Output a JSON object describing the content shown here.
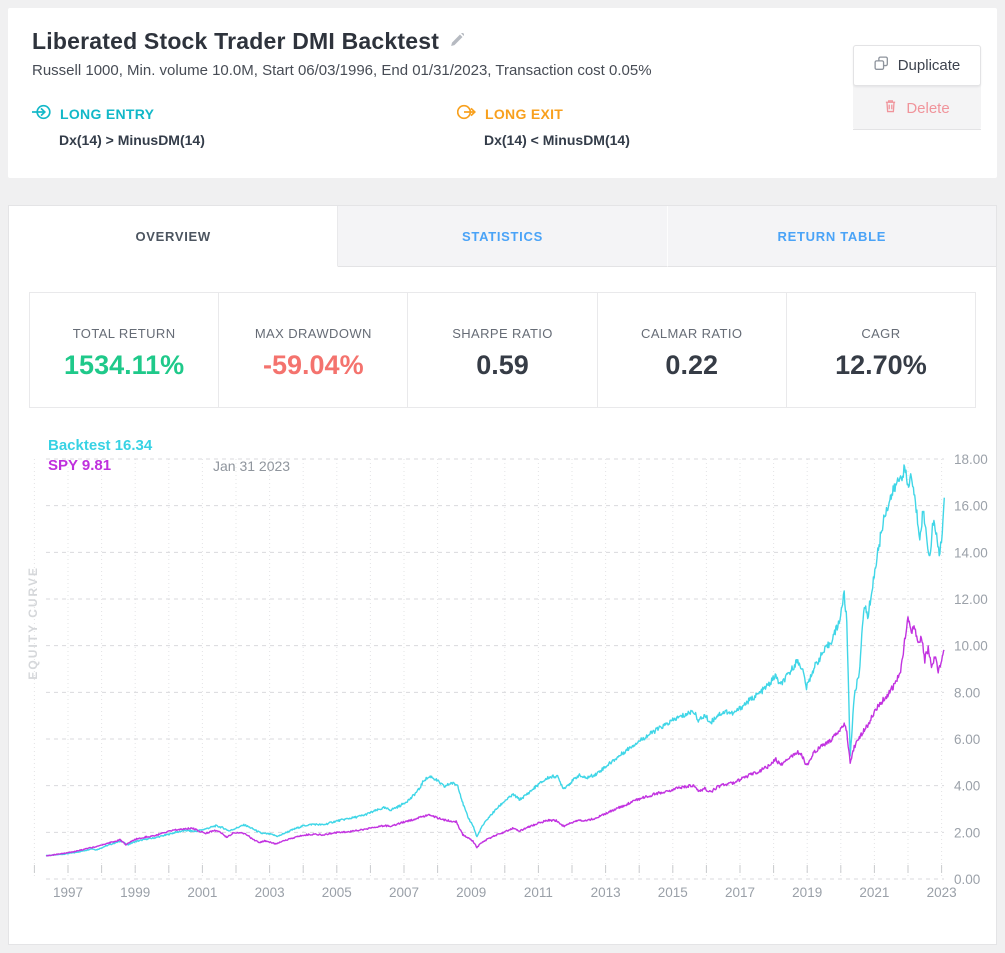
{
  "header": {
    "title": "Liberated Stock Trader DMI Backtest",
    "subtitle": "Russell 1000, Min. volume 10.0M, Start 06/03/1996, End 01/31/2023, Transaction cost 0.05%",
    "duplicate_label": "Duplicate",
    "delete_label": "Delete",
    "long_entry": {
      "label": "LONG ENTRY",
      "condition": "Dx(14) > MinusDM(14)",
      "color": "#12b8c8"
    },
    "long_exit": {
      "label": "LONG EXIT",
      "condition": "Dx(14) < MinusDM(14)",
      "color": "#f8a01d"
    }
  },
  "tabs": [
    {
      "label": "OVERVIEW",
      "active": true
    },
    {
      "label": "STATISTICS",
      "active": false
    },
    {
      "label": "RETURN TABLE",
      "active": false
    }
  ],
  "stats": [
    {
      "label": "TOTAL RETURN",
      "value": "1534.11%",
      "color": "#1fc98a"
    },
    {
      "label": "MAX DRAWDOWN",
      "value": "-59.04%",
      "color": "#f4736e"
    },
    {
      "label": "SHARPE RATIO",
      "value": "0.59",
      "color": "#363c46"
    },
    {
      "label": "CALMAR RATIO",
      "value": "0.22",
      "color": "#363c46"
    },
    {
      "label": "CAGR",
      "value": "12.70%",
      "color": "#363c46"
    }
  ],
  "chart_data": {
    "type": "line",
    "title": "EQUITY CURVE",
    "date_label": "Jan 31 2023",
    "grid": "dashed",
    "legend_position": "top-left",
    "xlim": [
      1996.35,
      2023.25
    ],
    "ylim": [
      0,
      18
    ],
    "x_ticks": [
      1997,
      1999,
      2001,
      2003,
      2005,
      2007,
      2009,
      2011,
      2013,
      2015,
      2017,
      2019,
      2021,
      2023
    ],
    "y_ticks": [
      "18.00",
      "16.00",
      "14.00",
      "12.00",
      "10.00",
      "8.00",
      "6.00",
      "4.00",
      "2.00",
      "0.00"
    ],
    "legend": [
      {
        "name": "Backtest",
        "value": 16.34,
        "label": "Backtest 16.34",
        "color": "#38d2e4"
      },
      {
        "name": "SPY",
        "value": 9.81,
        "label": "SPY 9.81",
        "color": "#bf30dd"
      }
    ],
    "series": [
      {
        "name": "Backtest",
        "color": "#40d6e7",
        "points": [
          [
            1996.35,
            1.0
          ],
          [
            1996.6,
            1.03
          ],
          [
            1996.9,
            1.07
          ],
          [
            1997.2,
            1.13
          ],
          [
            1997.5,
            1.22
          ],
          [
            1997.7,
            1.3
          ],
          [
            1997.85,
            1.25
          ],
          [
            1998.1,
            1.4
          ],
          [
            1998.4,
            1.55
          ],
          [
            1998.6,
            1.63
          ],
          [
            1998.75,
            1.46
          ],
          [
            1999.0,
            1.6
          ],
          [
            1999.3,
            1.7
          ],
          [
            1999.6,
            1.77
          ],
          [
            1999.9,
            1.88
          ],
          [
            2000.2,
            2.0
          ],
          [
            2000.5,
            2.08
          ],
          [
            2000.8,
            2.04
          ],
          [
            2001.1,
            2.15
          ],
          [
            2001.4,
            2.28
          ],
          [
            2001.6,
            2.2
          ],
          [
            2001.8,
            2.06
          ],
          [
            2002.0,
            2.18
          ],
          [
            2002.25,
            2.32
          ],
          [
            2002.5,
            2.15
          ],
          [
            2002.75,
            1.96
          ],
          [
            2003.0,
            1.93
          ],
          [
            2003.25,
            1.83
          ],
          [
            2003.5,
            2.0
          ],
          [
            2003.75,
            2.15
          ],
          [
            2004.0,
            2.28
          ],
          [
            2004.3,
            2.35
          ],
          [
            2004.6,
            2.32
          ],
          [
            2004.9,
            2.45
          ],
          [
            2005.2,
            2.55
          ],
          [
            2005.5,
            2.63
          ],
          [
            2005.8,
            2.73
          ],
          [
            2006.1,
            2.9
          ],
          [
            2006.4,
            3.05
          ],
          [
            2006.6,
            2.96
          ],
          [
            2006.9,
            3.15
          ],
          [
            2007.2,
            3.45
          ],
          [
            2007.45,
            3.85
          ],
          [
            2007.6,
            4.25
          ],
          [
            2007.8,
            4.4
          ],
          [
            2008.0,
            4.2
          ],
          [
            2008.2,
            3.95
          ],
          [
            2008.4,
            4.12
          ],
          [
            2008.6,
            4.02
          ],
          [
            2008.75,
            3.25
          ],
          [
            2008.9,
            2.65
          ],
          [
            2009.05,
            2.3
          ],
          [
            2009.17,
            1.8
          ],
          [
            2009.3,
            2.2
          ],
          [
            2009.5,
            2.6
          ],
          [
            2009.75,
            3.0
          ],
          [
            2010.0,
            3.35
          ],
          [
            2010.25,
            3.62
          ],
          [
            2010.45,
            3.4
          ],
          [
            2010.7,
            3.68
          ],
          [
            2011.0,
            4.05
          ],
          [
            2011.3,
            4.35
          ],
          [
            2011.55,
            4.42
          ],
          [
            2011.75,
            3.88
          ],
          [
            2011.95,
            4.12
          ],
          [
            2012.2,
            4.45
          ],
          [
            2012.4,
            4.32
          ],
          [
            2012.7,
            4.48
          ],
          [
            2013.0,
            4.82
          ],
          [
            2013.3,
            5.15
          ],
          [
            2013.6,
            5.5
          ],
          [
            2013.9,
            5.82
          ],
          [
            2014.2,
            6.1
          ],
          [
            2014.5,
            6.38
          ],
          [
            2014.8,
            6.62
          ],
          [
            2015.1,
            6.88
          ],
          [
            2015.4,
            7.05
          ],
          [
            2015.6,
            7.22
          ],
          [
            2015.78,
            6.78
          ],
          [
            2015.95,
            7.02
          ],
          [
            2016.12,
            6.7
          ],
          [
            2016.35,
            7.05
          ],
          [
            2016.6,
            7.18
          ],
          [
            2016.8,
            7.08
          ],
          [
            2017.0,
            7.32
          ],
          [
            2017.3,
            7.68
          ],
          [
            2017.6,
            7.98
          ],
          [
            2017.9,
            8.4
          ],
          [
            2018.05,
            8.72
          ],
          [
            2018.2,
            8.3
          ],
          [
            2018.45,
            8.78
          ],
          [
            2018.7,
            9.35
          ],
          [
            2018.85,
            9.05
          ],
          [
            2018.98,
            8.2
          ],
          [
            2019.2,
            9.05
          ],
          [
            2019.45,
            9.65
          ],
          [
            2019.7,
            10.15
          ],
          [
            2019.95,
            11.0
          ],
          [
            2020.1,
            12.2
          ],
          [
            2020.18,
            11.0
          ],
          [
            2020.28,
            5.3
          ],
          [
            2020.4,
            7.8
          ],
          [
            2020.55,
            8.9
          ],
          [
            2020.7,
            11.8
          ],
          [
            2020.8,
            11.2
          ],
          [
            2020.95,
            12.6
          ],
          [
            2021.1,
            14.0
          ],
          [
            2021.3,
            15.6
          ],
          [
            2021.5,
            16.4
          ],
          [
            2021.65,
            16.9
          ],
          [
            2021.8,
            17.3
          ],
          [
            2021.9,
            17.55
          ],
          [
            2022.0,
            16.8
          ],
          [
            2022.1,
            17.3
          ],
          [
            2022.2,
            16.3
          ],
          [
            2022.35,
            14.7
          ],
          [
            2022.45,
            15.8
          ],
          [
            2022.55,
            14.7
          ],
          [
            2022.65,
            13.75
          ],
          [
            2022.75,
            15.4
          ],
          [
            2022.85,
            14.6
          ],
          [
            2022.95,
            13.9
          ],
          [
            2023.02,
            15.0
          ],
          [
            2023.08,
            16.34
          ]
        ]
      },
      {
        "name": "SPY",
        "color": "#c233e0",
        "points": [
          [
            1996.35,
            1.0
          ],
          [
            1996.6,
            1.04
          ],
          [
            1996.9,
            1.1
          ],
          [
            1997.2,
            1.18
          ],
          [
            1997.5,
            1.28
          ],
          [
            1997.8,
            1.38
          ],
          [
            1998.1,
            1.5
          ],
          [
            1998.4,
            1.62
          ],
          [
            1998.55,
            1.68
          ],
          [
            1998.72,
            1.47
          ],
          [
            1999.0,
            1.7
          ],
          [
            1999.3,
            1.8
          ],
          [
            1999.6,
            1.86
          ],
          [
            1999.9,
            2.0
          ],
          [
            2000.2,
            2.1
          ],
          [
            2000.5,
            2.16
          ],
          [
            2000.7,
            2.18
          ],
          [
            2000.9,
            2.06
          ],
          [
            2001.1,
            1.96
          ],
          [
            2001.35,
            2.08
          ],
          [
            2001.55,
            2.0
          ],
          [
            2001.72,
            1.78
          ],
          [
            2001.9,
            1.95
          ],
          [
            2002.1,
            2.0
          ],
          [
            2002.3,
            1.92
          ],
          [
            2002.5,
            1.7
          ],
          [
            2002.7,
            1.56
          ],
          [
            2002.85,
            1.63
          ],
          [
            2003.0,
            1.58
          ],
          [
            2003.2,
            1.5
          ],
          [
            2003.4,
            1.62
          ],
          [
            2003.7,
            1.76
          ],
          [
            2004.0,
            1.88
          ],
          [
            2004.3,
            1.92
          ],
          [
            2004.6,
            1.89
          ],
          [
            2004.9,
            1.98
          ],
          [
            2005.2,
            2.0
          ],
          [
            2005.5,
            2.06
          ],
          [
            2005.8,
            2.12
          ],
          [
            2006.1,
            2.22
          ],
          [
            2006.4,
            2.29
          ],
          [
            2006.6,
            2.26
          ],
          [
            2006.9,
            2.4
          ],
          [
            2007.2,
            2.52
          ],
          [
            2007.5,
            2.66
          ],
          [
            2007.75,
            2.76
          ],
          [
            2008.0,
            2.62
          ],
          [
            2008.3,
            2.5
          ],
          [
            2008.55,
            2.46
          ],
          [
            2008.75,
            1.9
          ],
          [
            2008.9,
            1.78
          ],
          [
            2009.05,
            1.62
          ],
          [
            2009.17,
            1.35
          ],
          [
            2009.3,
            1.56
          ],
          [
            2009.5,
            1.72
          ],
          [
            2009.75,
            1.88
          ],
          [
            2010.0,
            2.02
          ],
          [
            2010.25,
            2.18
          ],
          [
            2010.45,
            2.06
          ],
          [
            2010.7,
            2.22
          ],
          [
            2011.0,
            2.4
          ],
          [
            2011.3,
            2.52
          ],
          [
            2011.55,
            2.5
          ],
          [
            2011.75,
            2.26
          ],
          [
            2011.95,
            2.4
          ],
          [
            2012.2,
            2.54
          ],
          [
            2012.4,
            2.5
          ],
          [
            2012.7,
            2.6
          ],
          [
            2013.0,
            2.8
          ],
          [
            2013.3,
            3.0
          ],
          [
            2013.6,
            3.18
          ],
          [
            2013.9,
            3.38
          ],
          [
            2014.2,
            3.52
          ],
          [
            2014.5,
            3.66
          ],
          [
            2014.8,
            3.76
          ],
          [
            2015.1,
            3.88
          ],
          [
            2015.4,
            3.96
          ],
          [
            2015.6,
            4.0
          ],
          [
            2015.78,
            3.76
          ],
          [
            2015.95,
            3.88
          ],
          [
            2016.12,
            3.72
          ],
          [
            2016.35,
            3.96
          ],
          [
            2016.6,
            4.06
          ],
          [
            2016.8,
            4.12
          ],
          [
            2017.0,
            4.26
          ],
          [
            2017.3,
            4.46
          ],
          [
            2017.6,
            4.64
          ],
          [
            2017.9,
            4.88
          ],
          [
            2018.05,
            5.16
          ],
          [
            2018.2,
            4.88
          ],
          [
            2018.45,
            5.16
          ],
          [
            2018.7,
            5.46
          ],
          [
            2018.85,
            5.28
          ],
          [
            2018.98,
            4.86
          ],
          [
            2019.2,
            5.42
          ],
          [
            2019.45,
            5.72
          ],
          [
            2019.7,
            5.96
          ],
          [
            2019.95,
            6.38
          ],
          [
            2020.1,
            6.6
          ],
          [
            2020.18,
            6.3
          ],
          [
            2020.28,
            4.95
          ],
          [
            2020.4,
            5.65
          ],
          [
            2020.55,
            6.05
          ],
          [
            2020.7,
            6.4
          ],
          [
            2020.8,
            6.6
          ],
          [
            2020.95,
            7.0
          ],
          [
            2021.1,
            7.4
          ],
          [
            2021.3,
            7.75
          ],
          [
            2021.5,
            8.1
          ],
          [
            2021.65,
            8.45
          ],
          [
            2021.78,
            8.85
          ],
          [
            2021.9,
            10.2
          ],
          [
            2022.0,
            11.15
          ],
          [
            2022.1,
            10.5
          ],
          [
            2022.2,
            10.85
          ],
          [
            2022.3,
            10.0
          ],
          [
            2022.4,
            10.35
          ],
          [
            2022.5,
            9.4
          ],
          [
            2022.6,
            9.9
          ],
          [
            2022.7,
            9.0
          ],
          [
            2022.8,
            9.55
          ],
          [
            2022.9,
            8.9
          ],
          [
            2023.0,
            9.4
          ],
          [
            2023.08,
            9.81
          ]
        ]
      }
    ]
  }
}
